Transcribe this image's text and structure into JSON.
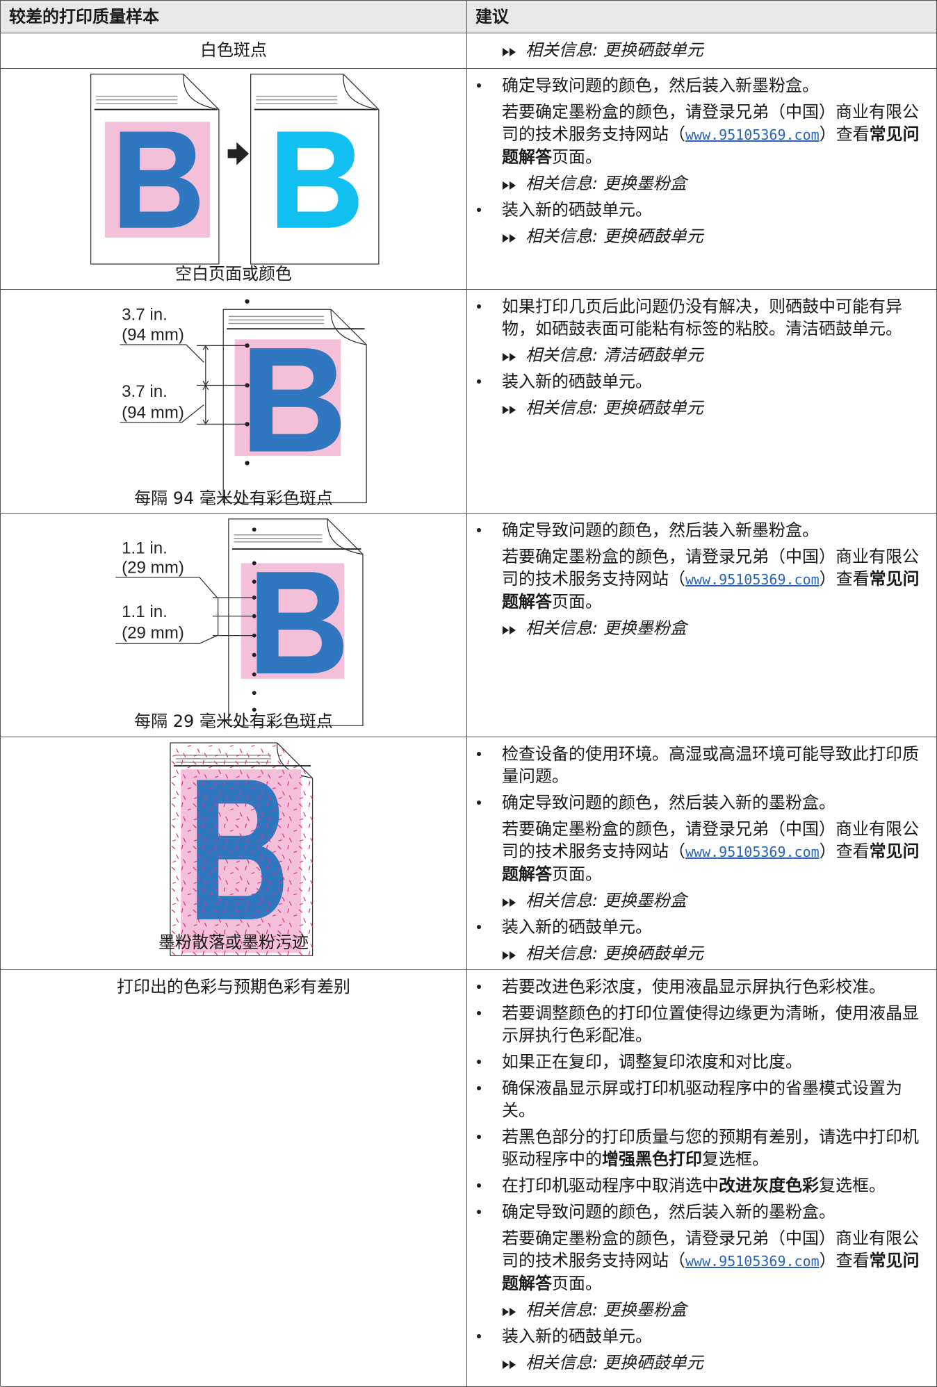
{
  "table": {
    "header": [
      "较差的打印质量样本",
      "建议"
    ],
    "rows": [
      {
        "sample": "白色斑点",
        "advice": [
          {
            "related": {
              "label": "相关信息:",
              "link": "更换硒鼓单元"
            }
          }
        ]
      },
      {
        "sample": "空白页面或颜色",
        "advice": [
          {
            "bullet": [
              {
                "text": "确定导致问题的颜色，然后装入新墨粉盒。"
              }
            ]
          },
          {
            "note": [
              {
                "text": "若要确定墨粉盒的颜色，请登录兄弟（中国）商业有限公司的技术服务支持网站（"
              },
              {
                "link": "www.95105369.com"
              },
              {
                "text": "）查看"
              },
              {
                "bold": "常见问题解答"
              },
              {
                "text": "页面。"
              }
            ]
          },
          {
            "related": {
              "label": "相关信息:",
              "link": "更换墨粉盒"
            }
          },
          {
            "bullet": [
              {
                "text": "装入新的硒鼓单元。"
              }
            ]
          },
          {
            "related": {
              "label": "相关信息:",
              "link": "更换硒鼓单元"
            }
          }
        ]
      },
      {
        "sample": "每隔 94 毫米处有彩色斑点",
        "annotations": [
          "3.7 in.",
          "(94 mm)",
          "3.7 in.",
          "(94 mm)"
        ],
        "advice": [
          {
            "bullet": [
              {
                "text": "如果打印几页后此问题仍没有解决，则硒鼓中可能有异物，如硒鼓表面可能粘有标签的粘胶。清洁硒鼓单元。"
              }
            ]
          },
          {
            "related": {
              "label": "相关信息:",
              "link": "清洁硒鼓单元"
            }
          },
          {
            "bullet": [
              {
                "text": "装入新的硒鼓单元。"
              }
            ]
          },
          {
            "related": {
              "label": "相关信息:",
              "link": "更换硒鼓单元"
            }
          }
        ]
      },
      {
        "sample": "每隔 29 毫米处有彩色斑点",
        "annotations": [
          "1.1 in.",
          "(29 mm)",
          "1.1 in.",
          "(29 mm)"
        ],
        "advice": [
          {
            "bullet": [
              {
                "text": "确定导致问题的颜色，然后装入新墨粉盒。"
              }
            ]
          },
          {
            "note": [
              {
                "text": "若要确定墨粉盒的颜色，请登录兄弟（中国）商业有限公司的技术服务支持网站（"
              },
              {
                "link": "www.95105369.com"
              },
              {
                "text": "）查看"
              },
              {
                "bold": "常见问题解答"
              },
              {
                "text": "页面。"
              }
            ]
          },
          {
            "related": {
              "label": "相关信息:",
              "link": "更换墨粉盒"
            }
          }
        ]
      },
      {
        "sample": "墨粉散落或墨粉污迹",
        "advice": [
          {
            "bullet": [
              {
                "text": "检查设备的使用环境。高湿或高温环境可能导致此打印质量问题。"
              }
            ]
          },
          {
            "bullet": [
              {
                "text": "确定导致问题的颜色，然后装入新的墨粉盒。"
              }
            ]
          },
          {
            "note": [
              {
                "text": "若要确定墨粉盒的颜色，请登录兄弟（中国）商业有限公司的技术服务支持网站（"
              },
              {
                "link": "www.95105369.com"
              },
              {
                "text": "）查看"
              },
              {
                "bold": "常见问题解答"
              },
              {
                "text": "页面。"
              }
            ]
          },
          {
            "related": {
              "label": "相关信息:",
              "link": "更换墨粉盒"
            }
          },
          {
            "bullet": [
              {
                "text": "装入新的硒鼓单元。"
              }
            ]
          },
          {
            "related": {
              "label": "相关信息:",
              "link": "更换硒鼓单元"
            }
          }
        ]
      },
      {
        "sample": "打印出的色彩与预期色彩有差别",
        "advice": [
          {
            "bullet": [
              {
                "text": "若要改进色彩浓度，使用液晶显示屏执行色彩校准。"
              }
            ]
          },
          {
            "bullet": [
              {
                "text": "若要调整颜色的打印位置使得边缘更为清晰，使用液晶显示屏执行色彩配准。"
              }
            ]
          },
          {
            "bullet": [
              {
                "text": "如果正在复印，调整复印浓度和对比度。"
              }
            ]
          },
          {
            "bullet": [
              {
                "text": "确保液晶显示屏或打印机驱动程序中的省墨模式设置为关。"
              }
            ]
          },
          {
            "bullet": [
              {
                "text": "若黑色部分的打印质量与您的预期有差别，请选中打印机驱动程序中的"
              },
              {
                "bold": "增强黑色打印"
              },
              {
                "text": "复选框。"
              }
            ]
          },
          {
            "bullet": [
              {
                "text": "在打印机驱动程序中取消选中"
              },
              {
                "bold": "改进灰度色彩"
              },
              {
                "text": "复选框。"
              }
            ]
          },
          {
            "bullet": [
              {
                "text": "确定导致问题的颜色，然后装入新的墨粉盒。"
              }
            ]
          },
          {
            "note": [
              {
                "text": "若要确定墨粉盒的颜色，请登录兄弟（中国）商业有限公司的技术服务支持网站（"
              },
              {
                "link": "www.95105369.com"
              },
              {
                "text": "）查看"
              },
              {
                "bold": "常见问题解答"
              },
              {
                "text": "页面。"
              }
            ]
          },
          {
            "related": {
              "label": "相关信息:",
              "link": "更换墨粉盒"
            }
          },
          {
            "bullet": [
              {
                "text": "装入新的硒鼓单元。"
              }
            ]
          },
          {
            "related": {
              "label": "相关信息:",
              "link": "更换硒鼓单元"
            }
          }
        ]
      }
    ]
  }
}
